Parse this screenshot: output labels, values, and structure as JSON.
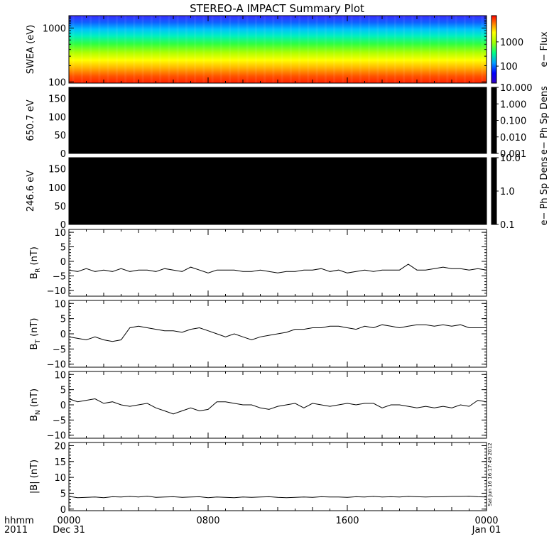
{
  "title": "STEREO-A IMPACT Summary Plot",
  "time_axis": {
    "corner_top": "hhmm",
    "corner_bottom": "2011",
    "ticks": [
      {
        "t": 0,
        "top": "0000",
        "bottom": "Dec 31"
      },
      {
        "t": 8,
        "top": "0800",
        "bottom": ""
      },
      {
        "t": 16,
        "top": "1600",
        "bottom": ""
      },
      {
        "t": 24,
        "top": "0000",
        "bottom": "Jan 01"
      }
    ],
    "range_hours": [
      0,
      24
    ]
  },
  "timestamp": "Sat Jun 16 16:17:49 2012",
  "colors": {
    "background": "#ffffff",
    "axes": "#000000",
    "empty_panel": "#000000"
  },
  "chart_data": [
    {
      "type": "heatmap",
      "panel": "swea",
      "ylabel": "SWEA (eV)",
      "yscale": "log",
      "ylim": [
        95,
        1700
      ],
      "y_ticks": [
        {
          "v": 100,
          "label": "100"
        },
        {
          "v": 1000,
          "label": "1000"
        }
      ],
      "colorbar": {
        "label": "e− Flux",
        "scale": "log",
        "range": [
          20,
          12000
        ],
        "ticks": [
          {
            "v": 100,
            "label": "100"
          },
          {
            "v": 1000,
            "label": "1000"
          }
        ],
        "colormap": "rainbow"
      },
      "description_rows": [
        {
          "energy": 1500,
          "color": "#4040ff"
        },
        {
          "energy": 1000,
          "color": "#00c8ff"
        },
        {
          "energy": 700,
          "color": "#00ffa0"
        },
        {
          "energy": 450,
          "color": "#a0ff00"
        },
        {
          "energy": 300,
          "color": "#ffff00"
        },
        {
          "energy": 200,
          "color": "#ffa000"
        },
        {
          "energy": 120,
          "color": "#ff3000"
        }
      ]
    },
    {
      "type": "heatmap",
      "panel": "pad650",
      "ylabel": "650.7 eV",
      "ylim": [
        0,
        180
      ],
      "y_ticks": [
        {
          "v": 0,
          "label": "0"
        },
        {
          "v": 50,
          "label": "50"
        },
        {
          "v": 100,
          "label": "100"
        },
        {
          "v": 150,
          "label": "150"
        }
      ],
      "colorbar": {
        "label": "e− Ph Sp Dens",
        "scale": "log",
        "range": [
          0.001,
          10
        ],
        "ticks": [
          {
            "v": 10,
            "label": "10.000"
          },
          {
            "v": 1,
            "label": "1.000"
          },
          {
            "v": 0.1,
            "label": "0.100"
          },
          {
            "v": 0.01,
            "label": "0.010"
          },
          {
            "v": 0.001,
            "label": "0.001"
          }
        ]
      },
      "fill": "#000000"
    },
    {
      "type": "heatmap",
      "panel": "pad246",
      "ylabel": "246.6 eV",
      "ylim": [
        0,
        180
      ],
      "y_ticks": [
        {
          "v": 0,
          "label": "0"
        },
        {
          "v": 50,
          "label": "50"
        },
        {
          "v": 100,
          "label": "100"
        },
        {
          "v": 150,
          "label": "150"
        }
      ],
      "colorbar": {
        "label": "e− Ph Sp Dens",
        "scale": "log",
        "range": [
          0.1,
          10
        ],
        "ticks": [
          {
            "v": 10,
            "label": "10.0"
          },
          {
            "v": 1,
            "label": "1.0"
          },
          {
            "v": 0.1,
            "label": "0.1"
          }
        ]
      },
      "fill": "#000000"
    },
    {
      "type": "line",
      "panel": "br",
      "ylabel_main": "B",
      "ylabel_sub": "R",
      "ylabel_unit": "(nT)",
      "ylim": [
        -12,
        11
      ],
      "y_ticks": [
        {
          "v": -10,
          "label": "−10"
        },
        {
          "v": -5,
          "label": "−5"
        },
        {
          "v": 0,
          "label": "0"
        },
        {
          "v": 5,
          "label": "5"
        },
        {
          "v": 10,
          "label": "10"
        }
      ],
      "x": [
        0,
        0.5,
        1,
        1.5,
        2,
        2.5,
        3,
        3.5,
        4,
        4.5,
        5,
        5.5,
        6,
        6.5,
        7,
        7.5,
        8,
        8.5,
        9,
        9.5,
        10,
        10.5,
        11,
        11.5,
        12,
        12.5,
        13,
        13.5,
        14,
        14.5,
        15,
        15.5,
        16,
        16.5,
        17,
        17.5,
        18,
        18.5,
        19,
        19.5,
        20,
        20.5,
        21,
        21.5,
        22,
        22.5,
        23,
        23.5,
        24
      ],
      "y": [
        -3,
        -3.5,
        -2.5,
        -3.5,
        -3,
        -3.5,
        -2.5,
        -3.5,
        -3,
        -3,
        -3.5,
        -2.5,
        -3,
        -3.5,
        -2,
        -3,
        -4,
        -3,
        -3,
        -3,
        -3.5,
        -3.5,
        -3,
        -3.5,
        -4,
        -3.5,
        -3.5,
        -3,
        -3,
        -2.5,
        -3.5,
        -3,
        -4,
        -3.5,
        -3,
        -3.5,
        -3,
        -3,
        -3,
        -1,
        -3,
        -3,
        -2.5,
        -2,
        -2.5,
        -2.5,
        -3,
        -2.5,
        -3
      ]
    },
    {
      "type": "line",
      "panel": "bt",
      "ylabel_main": "B",
      "ylabel_sub": "T",
      "ylabel_unit": "(nT)",
      "ylim": [
        -11,
        11
      ],
      "y_ticks": [
        {
          "v": -10,
          "label": "−10"
        },
        {
          "v": -5,
          "label": "−5"
        },
        {
          "v": 0,
          "label": "0"
        },
        {
          "v": 5,
          "label": "5"
        },
        {
          "v": 10,
          "label": "10"
        }
      ],
      "x": [
        0,
        0.5,
        1,
        1.5,
        2,
        2.5,
        3,
        3.5,
        4,
        4.5,
        5,
        5.5,
        6,
        6.5,
        7,
        7.5,
        8,
        8.5,
        9,
        9.5,
        10,
        10.5,
        11,
        11.5,
        12,
        12.5,
        13,
        13.5,
        14,
        14.5,
        15,
        15.5,
        16,
        16.5,
        17,
        17.5,
        18,
        18.5,
        19,
        19.5,
        20,
        20.5,
        21,
        21.5,
        22,
        22.5,
        23,
        23.5,
        24
      ],
      "y": [
        -1,
        -1.5,
        -2,
        -1,
        -2,
        -2.5,
        -2,
        2,
        2.5,
        2,
        1.5,
        1,
        1,
        0.5,
        1.5,
        2,
        1,
        0,
        -1,
        0,
        -1,
        -2,
        -1,
        -0.5,
        0,
        0.5,
        1.5,
        1.5,
        2,
        2,
        2.5,
        2.5,
        2,
        1.5,
        2.5,
        2,
        3,
        2.5,
        2,
        2.5,
        3,
        3,
        2.5,
        3,
        2.5,
        3,
        2,
        2,
        2
      ]
    },
    {
      "type": "line",
      "panel": "bn",
      "ylabel_main": "B",
      "ylabel_sub": "N",
      "ylabel_unit": "(nT)",
      "ylim": [
        -11,
        11
      ],
      "y_ticks": [
        {
          "v": -10,
          "label": "−10"
        },
        {
          "v": -5,
          "label": "−5"
        },
        {
          "v": 0,
          "label": "0"
        },
        {
          "v": 5,
          "label": "5"
        },
        {
          "v": 10,
          "label": "10"
        }
      ],
      "x": [
        0,
        0.5,
        1,
        1.5,
        2,
        2.5,
        3,
        3.5,
        4,
        4.5,
        5,
        5.5,
        6,
        6.5,
        7,
        7.5,
        8,
        8.5,
        9,
        9.5,
        10,
        10.5,
        11,
        11.5,
        12,
        12.5,
        13,
        13.5,
        14,
        14.5,
        15,
        15.5,
        16,
        16.5,
        17,
        17.5,
        18,
        18.5,
        19,
        19.5,
        20,
        20.5,
        21,
        21.5,
        22,
        22.5,
        23,
        23.5,
        24
      ],
      "y": [
        2,
        1,
        1.5,
        2,
        0.5,
        1,
        0,
        -0.5,
        0,
        0.5,
        -1,
        -2,
        -3,
        -2,
        -1,
        -2,
        -1.5,
        1,
        1,
        0.5,
        0,
        0,
        -1,
        -1.5,
        -0.5,
        0,
        0.5,
        -1,
        0.5,
        0,
        -0.5,
        0,
        0.5,
        0,
        0.5,
        0.5,
        -1,
        0,
        0,
        -0.5,
        -1,
        -0.5,
        -1,
        -0.5,
        -1,
        0,
        -0.5,
        1.5,
        1
      ]
    },
    {
      "type": "line",
      "panel": "bmag",
      "ylabel_main": "|B|",
      "ylabel_sub": "",
      "ylabel_unit": "(nT)",
      "ylim": [
        -0.5,
        21
      ],
      "y_ticks": [
        {
          "v": 0,
          "label": "0"
        },
        {
          "v": 5,
          "label": "5"
        },
        {
          "v": 10,
          "label": "10"
        },
        {
          "v": 15,
          "label": "15"
        },
        {
          "v": 20,
          "label": "20"
        }
      ],
      "x": [
        0,
        0.5,
        1,
        1.5,
        2,
        2.5,
        3,
        3.5,
        4,
        4.5,
        5,
        5.5,
        6,
        6.5,
        7,
        7.5,
        8,
        8.5,
        9,
        9.5,
        10,
        10.5,
        11,
        11.5,
        12,
        12.5,
        13,
        13.5,
        14,
        14.5,
        15,
        15.5,
        16,
        16.5,
        17,
        17.5,
        18,
        18.5,
        19,
        19.5,
        20,
        20.5,
        21,
        21.5,
        22,
        22.5,
        23,
        23.5,
        24
      ],
      "y": [
        4,
        3.6,
        3.7,
        3.8,
        3.6,
        3.9,
        3.8,
        4,
        3.8,
        4.1,
        3.7,
        3.8,
        3.9,
        3.7,
        3.8,
        3.9,
        3.6,
        3.8,
        3.7,
        3.6,
        3.8,
        3.7,
        3.8,
        3.9,
        3.7,
        3.6,
        3.7,
        3.8,
        3.7,
        3.9,
        3.8,
        3.8,
        3.7,
        3.9,
        3.8,
        4,
        3.8,
        3.9,
        3.8,
        4,
        3.9,
        3.8,
        3.9,
        3.9,
        4,
        4,
        4.1,
        3.9,
        3.8
      ]
    }
  ]
}
